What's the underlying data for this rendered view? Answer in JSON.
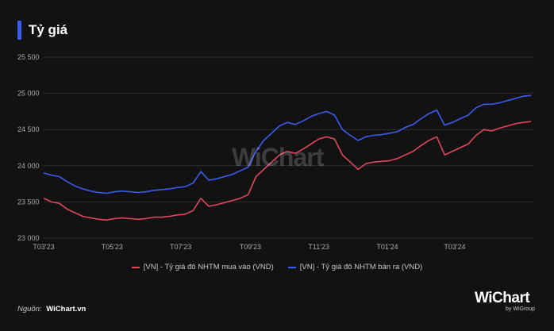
{
  "title": "Tỷ giá",
  "watermark": "WiChart",
  "source": {
    "label": "Nguồn:",
    "value": "WiChart.vn"
  },
  "brand": {
    "name": "WiChart",
    "sub": "by WiGroup"
  },
  "chart_data": {
    "type": "line",
    "ylim": [
      23000,
      25500
    ],
    "yticks": [
      23000,
      23500,
      24000,
      24500,
      25000,
      25500
    ],
    "ytick_labels": [
      "23 000",
      "23 500",
      "24 000",
      "24 500",
      "25 000",
      "25 500"
    ],
    "xlim": [
      "2023-03-01",
      "2024-05-10"
    ],
    "xticks": [
      "2023-03-01",
      "2023-05-01",
      "2023-07-01",
      "2023-09-01",
      "2023-11-01",
      "2024-01-01",
      "2024-03-01"
    ],
    "xtick_labels": [
      "T03'23",
      "T05'23",
      "T07'23",
      "T09'23",
      "T11'23",
      "T01'24",
      "T03'24"
    ],
    "grid": {
      "horizontal": true,
      "vertical": false
    },
    "legend_position": "bottom",
    "series": [
      {
        "name": "[VN] - Tỷ giá đô NHTM mua vào (VND)",
        "color": "#e0475c",
        "points": [
          [
            "2023-03-01",
            23550
          ],
          [
            "2023-03-08",
            23500
          ],
          [
            "2023-03-15",
            23480
          ],
          [
            "2023-03-22",
            23400
          ],
          [
            "2023-03-29",
            23350
          ],
          [
            "2023-04-05",
            23300
          ],
          [
            "2023-04-12",
            23280
          ],
          [
            "2023-04-19",
            23260
          ],
          [
            "2023-04-26",
            23250
          ],
          [
            "2023-05-03",
            23270
          ],
          [
            "2023-05-10",
            23280
          ],
          [
            "2023-05-17",
            23270
          ],
          [
            "2023-05-24",
            23260
          ],
          [
            "2023-05-31",
            23270
          ],
          [
            "2023-06-07",
            23290
          ],
          [
            "2023-06-14",
            23290
          ],
          [
            "2023-06-21",
            23300
          ],
          [
            "2023-06-28",
            23320
          ],
          [
            "2023-07-05",
            23330
          ],
          [
            "2023-07-12",
            23380
          ],
          [
            "2023-07-19",
            23550
          ],
          [
            "2023-07-26",
            23440
          ],
          [
            "2023-08-02",
            23460
          ],
          [
            "2023-08-09",
            23490
          ],
          [
            "2023-08-16",
            23520
          ],
          [
            "2023-08-23",
            23550
          ],
          [
            "2023-08-30",
            23600
          ],
          [
            "2023-09-06",
            23850
          ],
          [
            "2023-09-13",
            23950
          ],
          [
            "2023-09-20",
            24050
          ],
          [
            "2023-09-27",
            24150
          ],
          [
            "2023-10-04",
            24200
          ],
          [
            "2023-10-11",
            24170
          ],
          [
            "2023-10-18",
            24230
          ],
          [
            "2023-10-25",
            24300
          ],
          [
            "2023-11-01",
            24370
          ],
          [
            "2023-11-08",
            24400
          ],
          [
            "2023-11-15",
            24370
          ],
          [
            "2023-11-22",
            24150
          ],
          [
            "2023-11-29",
            24050
          ],
          [
            "2023-12-06",
            23950
          ],
          [
            "2023-12-13",
            24030
          ],
          [
            "2023-12-20",
            24050
          ],
          [
            "2023-12-27",
            24060
          ],
          [
            "2024-01-03",
            24070
          ],
          [
            "2024-01-10",
            24100
          ],
          [
            "2024-01-17",
            24150
          ],
          [
            "2024-01-24",
            24200
          ],
          [
            "2024-01-31",
            24280
          ],
          [
            "2024-02-07",
            24350
          ],
          [
            "2024-02-14",
            24400
          ],
          [
            "2024-02-21",
            24150
          ],
          [
            "2024-02-28",
            24200
          ],
          [
            "2024-03-06",
            24250
          ],
          [
            "2024-03-13",
            24300
          ],
          [
            "2024-03-20",
            24420
          ],
          [
            "2024-03-27",
            24500
          ],
          [
            "2024-04-03",
            24480
          ],
          [
            "2024-04-10",
            24520
          ],
          [
            "2024-04-17",
            24550
          ],
          [
            "2024-04-24",
            24580
          ],
          [
            "2024-05-01",
            24600
          ],
          [
            "2024-05-08",
            24610
          ]
        ]
      },
      {
        "name": "[VN] - Tỷ giá đô NHTM bán ra (VND)",
        "color": "#3b5cf0",
        "points": [
          [
            "2023-03-01",
            23900
          ],
          [
            "2023-03-08",
            23870
          ],
          [
            "2023-03-15",
            23850
          ],
          [
            "2023-03-22",
            23780
          ],
          [
            "2023-03-29",
            23720
          ],
          [
            "2023-04-05",
            23680
          ],
          [
            "2023-04-12",
            23650
          ],
          [
            "2023-04-19",
            23630
          ],
          [
            "2023-04-26",
            23620
          ],
          [
            "2023-05-03",
            23640
          ],
          [
            "2023-05-10",
            23650
          ],
          [
            "2023-05-17",
            23640
          ],
          [
            "2023-05-24",
            23630
          ],
          [
            "2023-05-31",
            23640
          ],
          [
            "2023-06-07",
            23660
          ],
          [
            "2023-06-14",
            23670
          ],
          [
            "2023-06-21",
            23680
          ],
          [
            "2023-06-28",
            23700
          ],
          [
            "2023-07-05",
            23710
          ],
          [
            "2023-07-12",
            23760
          ],
          [
            "2023-07-19",
            23920
          ],
          [
            "2023-07-26",
            23800
          ],
          [
            "2023-08-02",
            23820
          ],
          [
            "2023-08-09",
            23850
          ],
          [
            "2023-08-16",
            23880
          ],
          [
            "2023-08-23",
            23930
          ],
          [
            "2023-08-30",
            23980
          ],
          [
            "2023-09-06",
            24200
          ],
          [
            "2023-09-13",
            24350
          ],
          [
            "2023-09-20",
            24450
          ],
          [
            "2023-09-27",
            24550
          ],
          [
            "2023-10-04",
            24600
          ],
          [
            "2023-10-11",
            24570
          ],
          [
            "2023-10-18",
            24620
          ],
          [
            "2023-10-25",
            24680
          ],
          [
            "2023-11-01",
            24720
          ],
          [
            "2023-11-08",
            24750
          ],
          [
            "2023-11-15",
            24700
          ],
          [
            "2023-11-22",
            24500
          ],
          [
            "2023-11-29",
            24420
          ],
          [
            "2023-12-06",
            24350
          ],
          [
            "2023-12-13",
            24400
          ],
          [
            "2023-12-20",
            24420
          ],
          [
            "2023-12-27",
            24430
          ],
          [
            "2024-01-03",
            24450
          ],
          [
            "2024-01-10",
            24470
          ],
          [
            "2024-01-17",
            24530
          ],
          [
            "2024-01-24",
            24570
          ],
          [
            "2024-01-31",
            24650
          ],
          [
            "2024-02-07",
            24720
          ],
          [
            "2024-02-14",
            24770
          ],
          [
            "2024-02-21",
            24560
          ],
          [
            "2024-02-28",
            24600
          ],
          [
            "2024-03-06",
            24650
          ],
          [
            "2024-03-13",
            24700
          ],
          [
            "2024-03-20",
            24800
          ],
          [
            "2024-03-27",
            24850
          ],
          [
            "2024-04-03",
            24850
          ],
          [
            "2024-04-10",
            24870
          ],
          [
            "2024-04-17",
            24900
          ],
          [
            "2024-04-24",
            24930
          ],
          [
            "2024-05-01",
            24960
          ],
          [
            "2024-05-08",
            24970
          ]
        ]
      }
    ]
  }
}
